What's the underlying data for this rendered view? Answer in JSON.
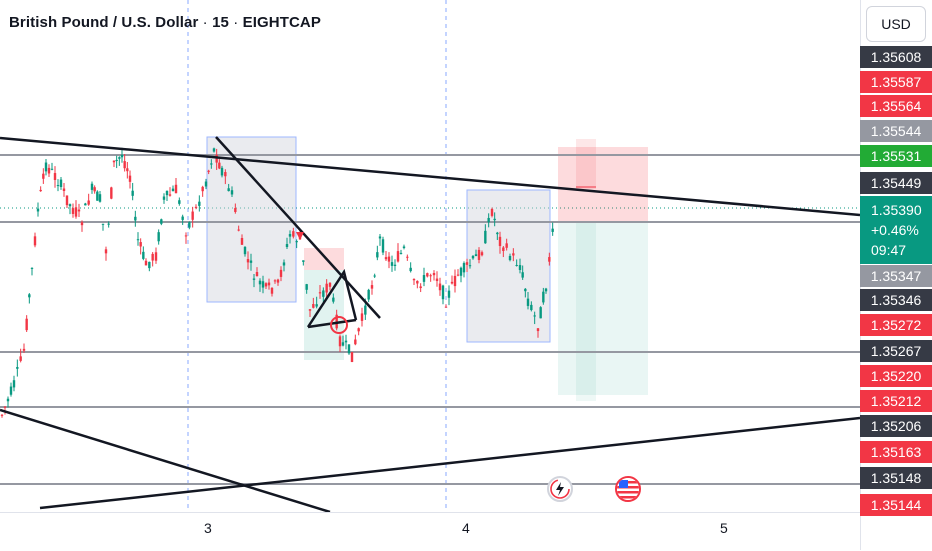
{
  "header": {
    "symbol_name": "British Pound / U.S. Dollar",
    "separator": "·",
    "interval": "15",
    "broker": "EIGHTCAP"
  },
  "price_axis": {
    "currency": "USD",
    "labels": [
      {
        "text": "1.35608",
        "color": "#363a45"
      },
      {
        "text": "1.35587",
        "color": "#f23645"
      },
      {
        "text": "1.35564",
        "color": "#f23645"
      },
      {
        "text": "1.35544",
        "color": "#9598a1"
      },
      {
        "text": "1.35531",
        "color": "#22ab35"
      },
      {
        "text": "1.35449",
        "color": "#363a45"
      },
      {
        "text": "1.35347",
        "color": "#9598a1"
      },
      {
        "text": "1.35346",
        "color": "#363a45"
      },
      {
        "text": "1.35272",
        "color": "#f23645"
      },
      {
        "text": "1.35267",
        "color": "#363a45"
      },
      {
        "text": "1.35220",
        "color": "#f23645"
      },
      {
        "text": "1.35212",
        "color": "#f23645"
      },
      {
        "text": "1.35206",
        "color": "#363a45"
      },
      {
        "text": "1.35163",
        "color": "#f23645"
      },
      {
        "text": "1.35148",
        "color": "#363a45"
      },
      {
        "text": "1.35144",
        "color": "#f23645"
      }
    ],
    "current": {
      "price": "1.35390",
      "change": "+0.46%",
      "countdown": "09:47",
      "color": "#089981"
    }
  },
  "time_axis": {
    "labels": [
      "3",
      "4",
      "5"
    ]
  },
  "events": {
    "flash_icon": "lightning-event-icon",
    "flag_icon": "us-flag-event-icon"
  },
  "colors": {
    "up": "#089981",
    "down": "#f23645",
    "box_fill": "#d1d4dc",
    "box_border": "#2962ff"
  }
}
